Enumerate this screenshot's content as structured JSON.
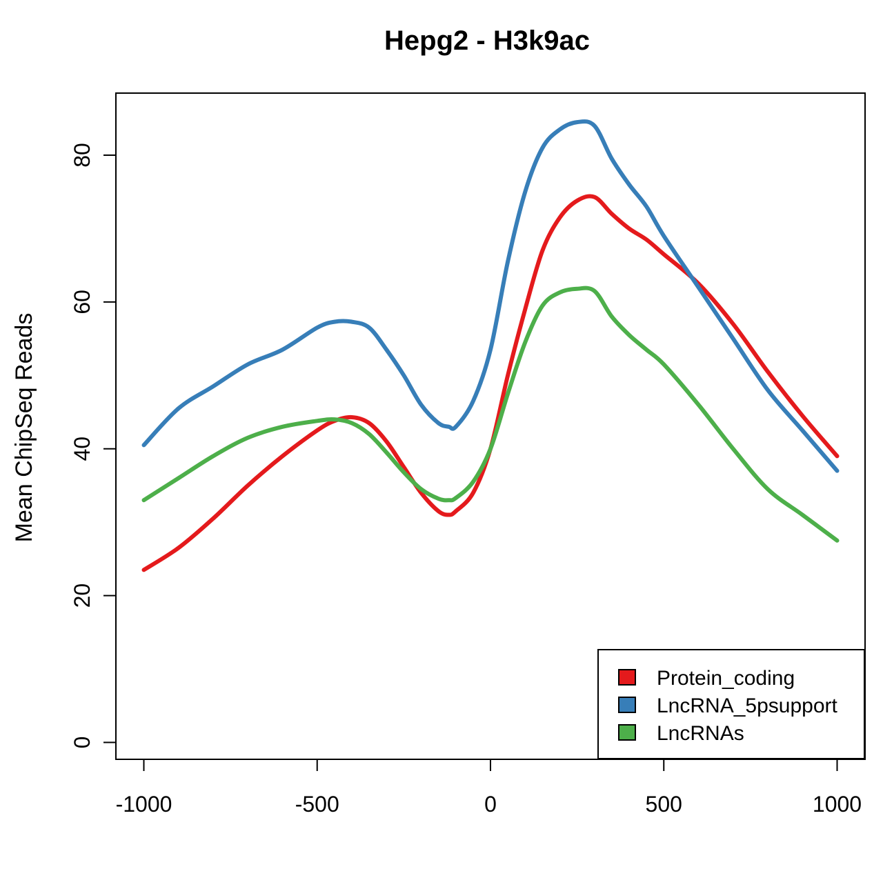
{
  "chart_data": {
    "type": "line",
    "title": "Hepg2 - H3k9ac",
    "xlabel": "",
    "ylabel": "Mean ChipSeq Reads",
    "xlim": [
      -1000,
      1000
    ],
    "ylim": [
      0,
      85
    ],
    "x_ticks": [
      -1000,
      -500,
      0,
      500,
      1000
    ],
    "y_ticks": [
      0,
      20,
      40,
      60,
      80
    ],
    "grid": false,
    "legend_position": "bottom-right",
    "x": [
      -1000,
      -900,
      -800,
      -700,
      -600,
      -500,
      -450,
      -400,
      -350,
      -300,
      -250,
      -200,
      -150,
      -120,
      -100,
      -50,
      0,
      50,
      100,
      150,
      200,
      250,
      300,
      350,
      400,
      450,
      500,
      600,
      700,
      800,
      900,
      1000
    ],
    "series": [
      {
        "name": "Protein_coding",
        "color": "#e41a1c",
        "values": [
          23.5,
          26.5,
          30.5,
          35.0,
          39.0,
          42.5,
          43.8,
          44.3,
          43.5,
          41.0,
          37.5,
          34.0,
          31.5,
          31.0,
          31.5,
          34.0,
          40.0,
          50.0,
          59.0,
          67.0,
          71.5,
          73.8,
          74.3,
          72.0,
          70.0,
          68.5,
          66.5,
          62.5,
          57.0,
          50.5,
          44.5,
          39.0
        ]
      },
      {
        "name": "LncRNA_5psupport",
        "color": "#377eb8",
        "values": [
          40.5,
          45.5,
          48.5,
          51.5,
          53.5,
          56.5,
          57.3,
          57.3,
          56.5,
          53.5,
          50.0,
          46.0,
          43.5,
          43.0,
          43.0,
          46.5,
          53.5,
          65.5,
          75.0,
          81.0,
          83.5,
          84.5,
          84.0,
          79.5,
          76.0,
          73.0,
          69.0,
          62.0,
          55.0,
          48.0,
          42.5,
          37.0
        ]
      },
      {
        "name": "LncRNAs",
        "color": "#4daf4a",
        "values": [
          33.0,
          36.0,
          39.0,
          41.5,
          43.0,
          43.8,
          44.0,
          43.5,
          42.0,
          39.5,
          36.8,
          34.5,
          33.2,
          33.0,
          33.3,
          35.5,
          40.0,
          47.5,
          54.5,
          59.5,
          61.3,
          61.8,
          61.5,
          58.0,
          55.5,
          53.5,
          51.5,
          46.0,
          40.0,
          34.5,
          31.0,
          27.5
        ]
      }
    ]
  }
}
